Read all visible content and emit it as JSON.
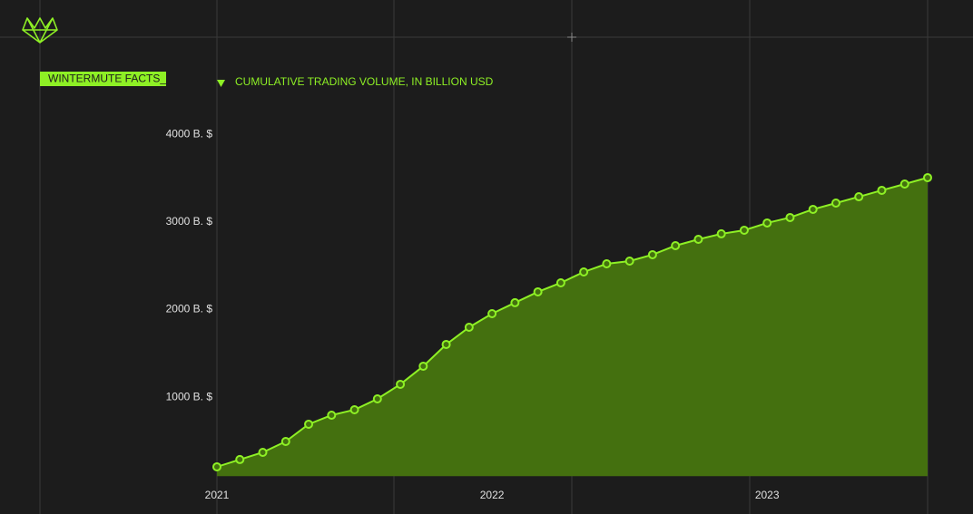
{
  "header": {
    "tag": "WINTERMUTE FACTS_"
  },
  "chart_data": {
    "type": "area",
    "title": "CUMULATIVE TRADING VOLUME, IN BILLION USD",
    "categories": [
      "2021",
      null,
      null,
      null,
      null,
      null,
      null,
      null,
      null,
      null,
      null,
      null,
      "2022",
      null,
      null,
      null,
      null,
      null,
      null,
      null,
      null,
      null,
      null,
      null,
      "2023",
      null,
      null,
      null,
      null,
      null,
      null,
      null
    ],
    "values": [
      207,
      290,
      372,
      496,
      693,
      796,
      858,
      982,
      1148,
      1355,
      1603,
      1799,
      1954,
      2079,
      2203,
      2306,
      2430,
      2523,
      2554,
      2627,
      2730,
      2802,
      2865,
      2906,
      2989,
      3051,
      3144,
      3216,
      3288,
      3361,
      3433,
      3506
    ],
    "color": "#8ef025",
    "fill_color": "#44700f",
    "ylim": [
      100,
      4400
    ],
    "yticks": [
      {
        "value": 1000,
        "label": "1000 B. $"
      },
      {
        "value": 2000,
        "label": "2000 B. $"
      },
      {
        "value": 3000,
        "label": "3000 B. $"
      },
      {
        "value": 4000,
        "label": "4000 B. $"
      }
    ],
    "grid": false
  }
}
